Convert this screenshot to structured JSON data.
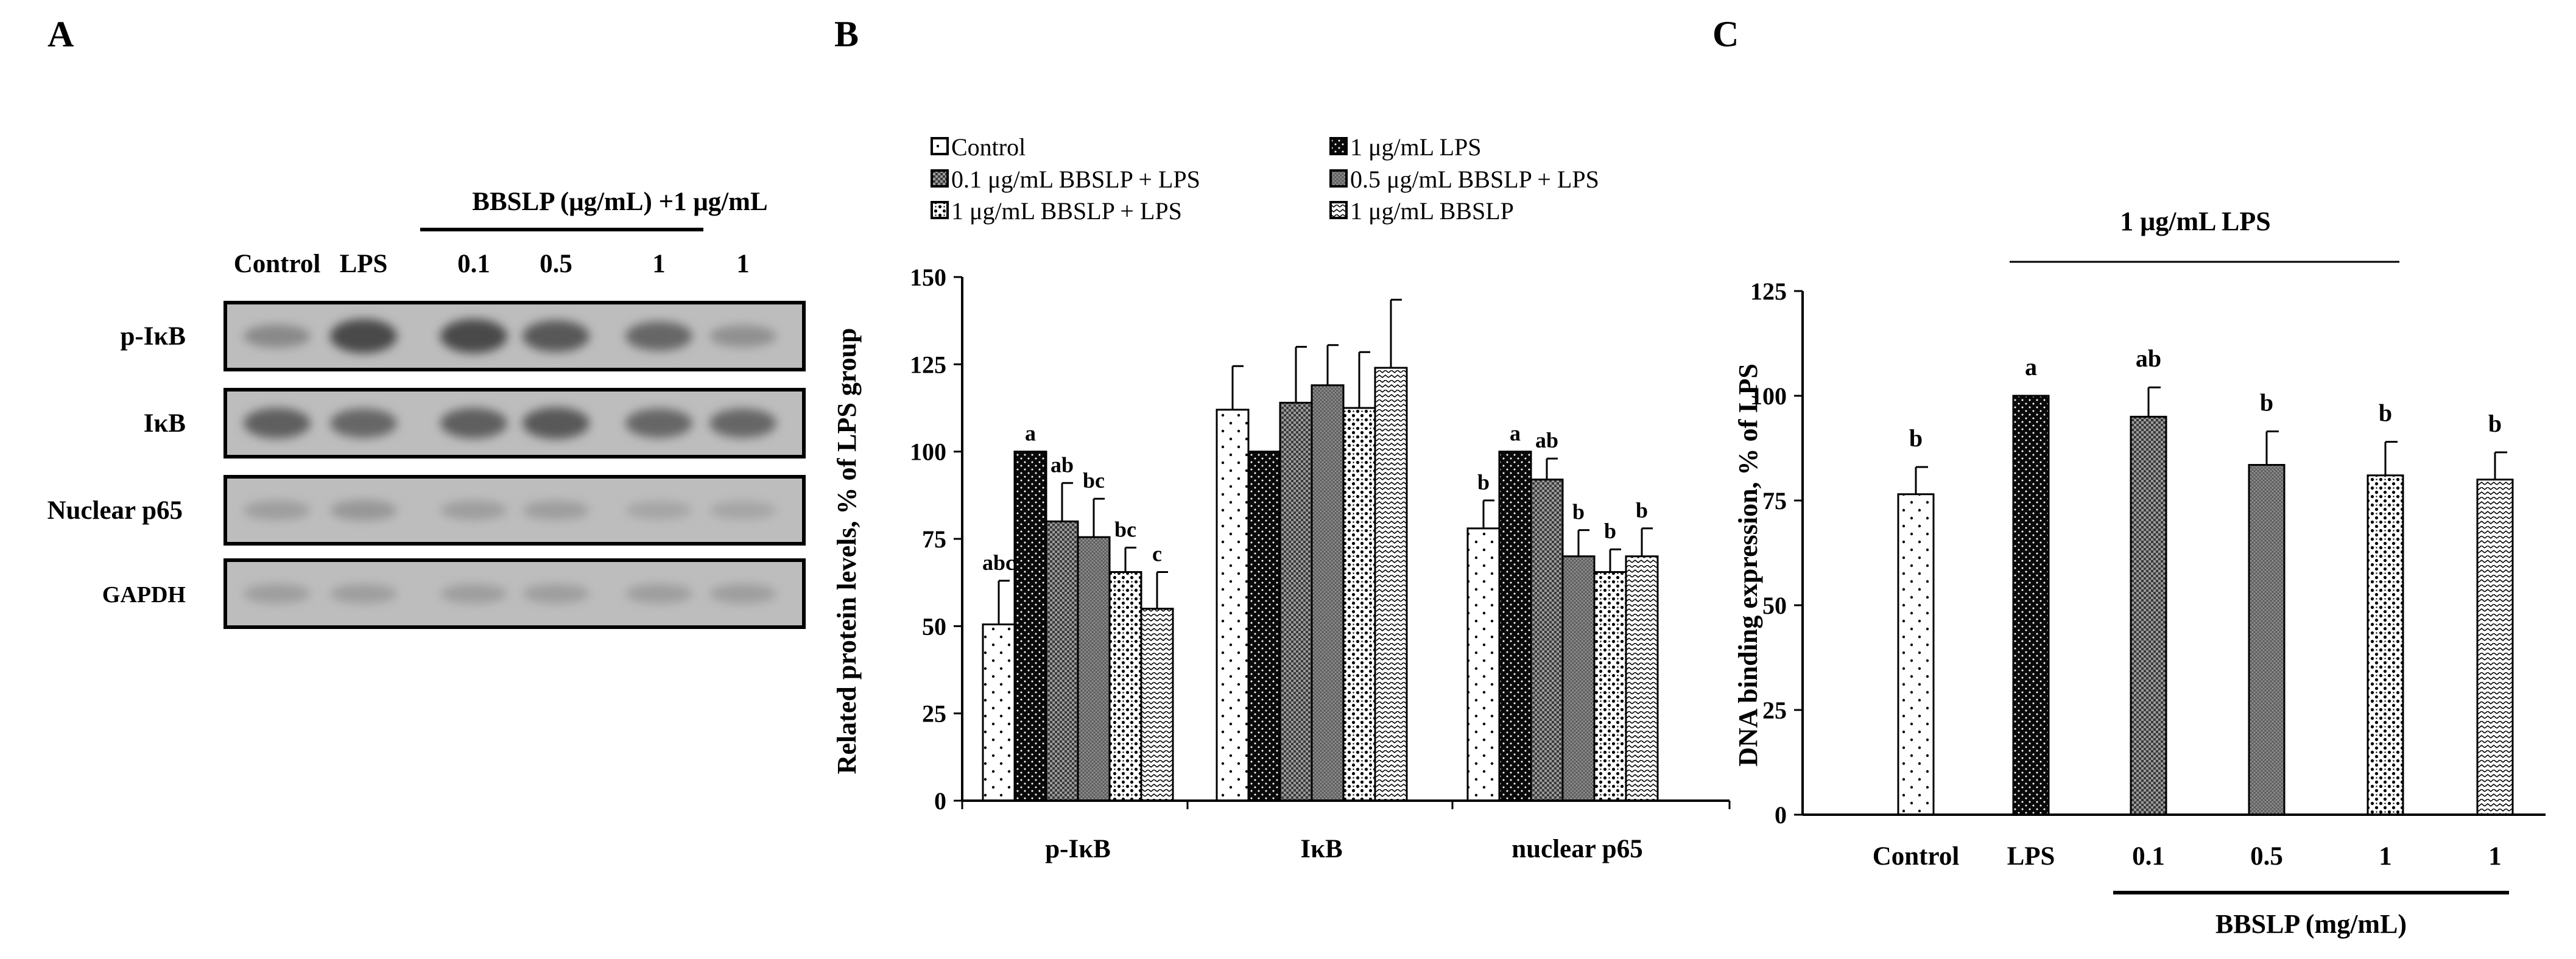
{
  "panels": {
    "a": "A",
    "b": "B",
    "c": "C"
  },
  "colors": {
    "ink": "#000000",
    "blot_bg": "#bdbdbd",
    "band": "#4a4a4a",
    "band_faint": "#8c8c8c"
  },
  "blot": {
    "header": "BBSLP (μg/mL) +1 μg/mL",
    "lanes": [
      "Control",
      "LPS",
      "0.1",
      "0.5",
      "1",
      "1"
    ],
    "rows": [
      {
        "label": "p-IκB",
        "intensity": [
          0.45,
          0.9,
          0.9,
          0.8,
          0.7,
          0.4
        ]
      },
      {
        "label": "IκB",
        "intensity": [
          0.75,
          0.7,
          0.75,
          0.8,
          0.7,
          0.7
        ]
      },
      {
        "label": "Nuclear p65",
        "intensity": [
          0.3,
          0.35,
          0.3,
          0.3,
          0.25,
          0.25
        ]
      },
      {
        "label": "GAPDH",
        "intensity": [
          0.3,
          0.3,
          0.3,
          0.3,
          0.3,
          0.3
        ]
      }
    ]
  },
  "chart_data": [
    {
      "type": "bar",
      "title": "",
      "xlabel": "",
      "ylabel": "Related protein levels, % of LPS group",
      "ylim": [
        0,
        150
      ],
      "yticks": [
        0,
        25,
        50,
        75,
        100,
        125,
        150
      ],
      "categories": [
        "p-IκB",
        "IκB",
        "nuclear p65"
      ],
      "legend": [
        "Control",
        "1 μg/mL LPS",
        "0.1 μg/mL BBSLP + LPS",
        "0.5 μg/mL BBSLP + LPS",
        "1 μg/mL BBSLP + LPS",
        "1 μg/mL  BBSLP"
      ],
      "series": [
        {
          "name": "Control",
          "values": [
            50.5,
            112,
            78
          ],
          "errors": [
            12.5,
            12.5,
            8
          ],
          "labels": [
            "abc",
            "",
            "b"
          ],
          "pattern": "dots"
        },
        {
          "name": "1 μg/mL LPS",
          "values": [
            100,
            100,
            100
          ],
          "errors": [
            0,
            0,
            0
          ],
          "labels": [
            "a",
            "",
            "a"
          ],
          "pattern": "dark"
        },
        {
          "name": "0.1 μg/mL BBSLP + LPS",
          "values": [
            80,
            114,
            92
          ],
          "errors": [
            11,
            16,
            6
          ],
          "labels": [
            "ab",
            "",
            "ab"
          ],
          "pattern": "checker"
        },
        {
          "name": "0.5 μg/mL BBSLP + LPS",
          "values": [
            75.5,
            119,
            70
          ],
          "errors": [
            11,
            11.5,
            7.5
          ],
          "labels": [
            "bc",
            "",
            "b"
          ],
          "pattern": "grid"
        },
        {
          "name": "1 μg/mL BBSLP + LPS",
          "values": [
            65.5,
            112.5,
            65.5
          ],
          "errors": [
            7,
            16,
            6.5
          ],
          "labels": [
            "bc",
            "",
            "b"
          ],
          "pattern": "dense"
        },
        {
          "name": "1 μg/mL  BBSLP",
          "values": [
            55,
            124,
            70
          ],
          "errors": [
            10.5,
            19.5,
            8
          ],
          "labels": [
            "c",
            "",
            "b"
          ],
          "pattern": "zigzag"
        }
      ]
    },
    {
      "type": "bar",
      "title": "1 μg/mL LPS",
      "xlabel": "BBSLP (mg/mL)",
      "ylabel": "DNA binding expression, % of LPS",
      "ylim": [
        0,
        125
      ],
      "yticks": [
        0,
        25,
        50,
        75,
        100,
        125
      ],
      "categories": [
        "Control",
        "LPS",
        "0.1",
        "0.5",
        "1",
        "1"
      ],
      "values": [
        76.5,
        100,
        95,
        83.5,
        81,
        80
      ],
      "errors": [
        6.5,
        0,
        7,
        8,
        8,
        6.5
      ],
      "labels": [
        "b",
        "a",
        "ab",
        "b",
        "b",
        "b"
      ],
      "patterns": [
        "dots",
        "dark",
        "checker",
        "grid",
        "dense",
        "zigzag"
      ]
    }
  ]
}
